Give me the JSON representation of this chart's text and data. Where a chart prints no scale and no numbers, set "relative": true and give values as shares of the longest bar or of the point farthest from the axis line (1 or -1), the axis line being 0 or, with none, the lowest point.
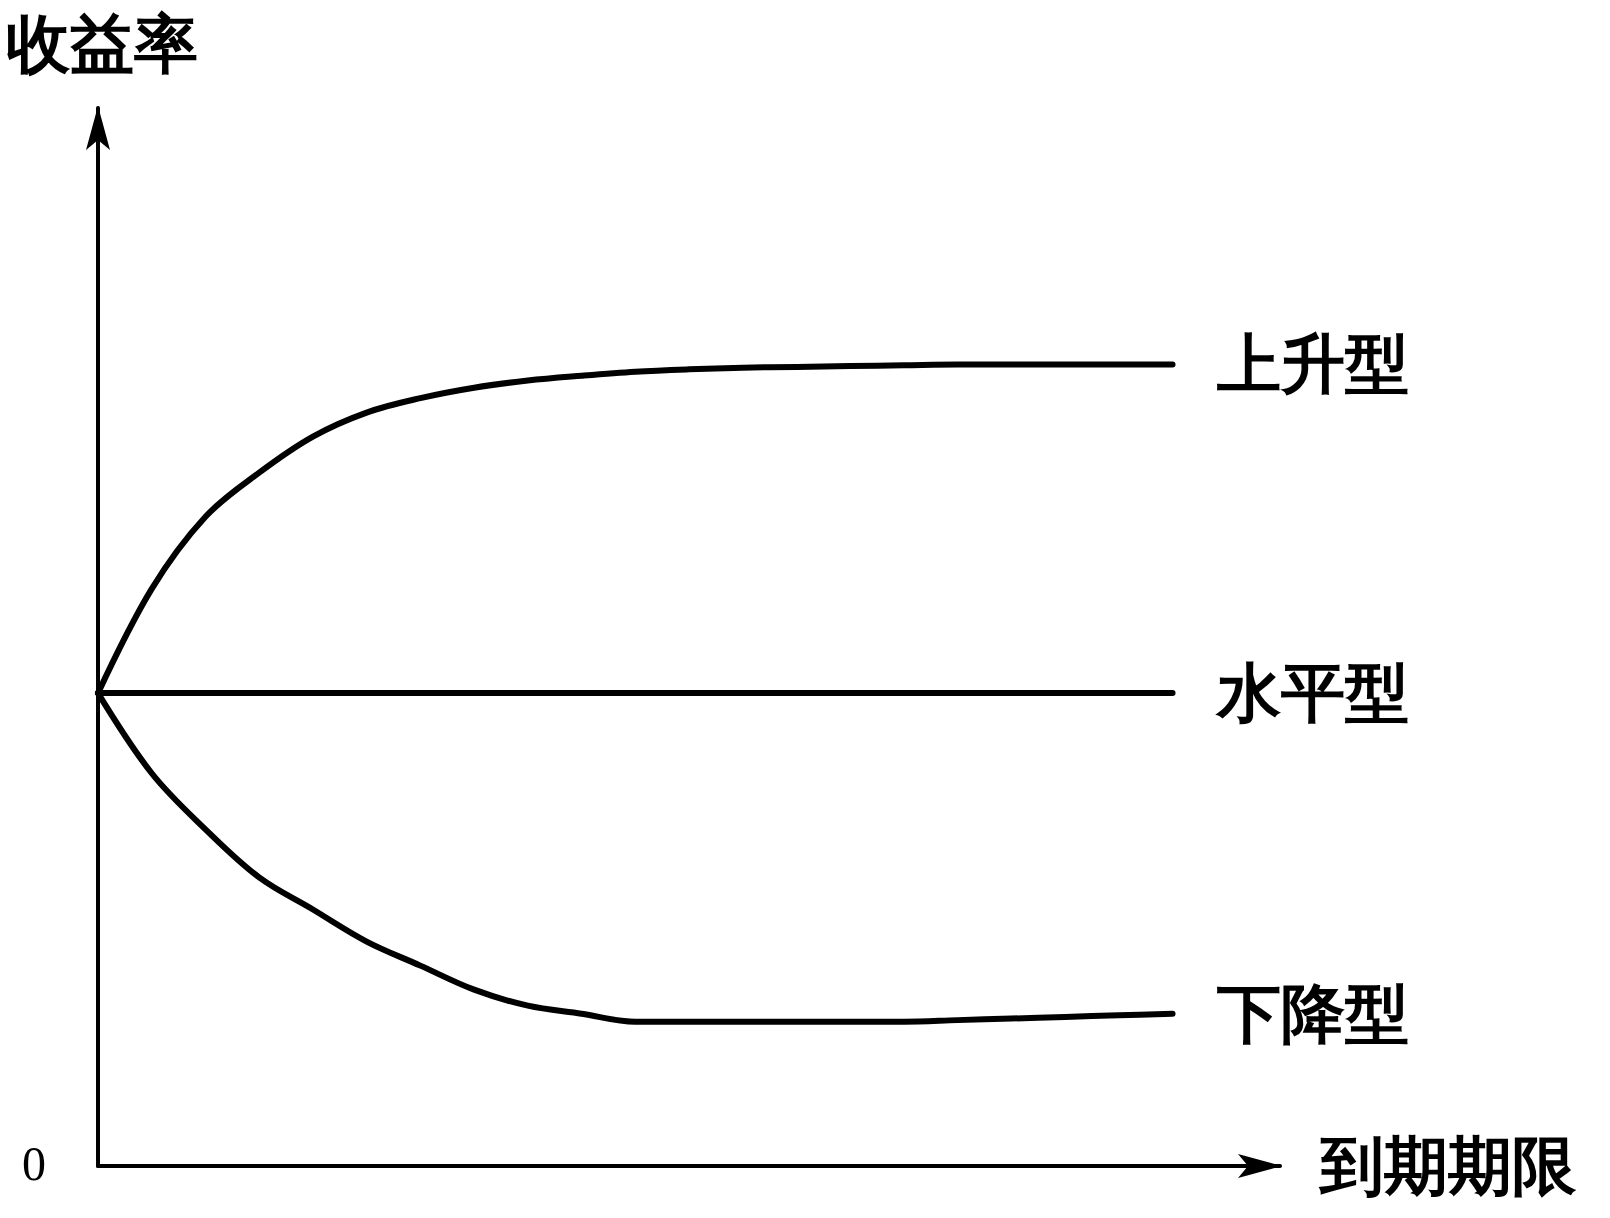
{
  "chart_data": {
    "type": "line",
    "relative": true,
    "xlabel": "到期期限",
    "ylabel": "收益率",
    "annotations": [
      "0"
    ],
    "categories": [
      null,
      null,
      null,
      null,
      null,
      null,
      null,
      null,
      null,
      null,
      null,
      null,
      null,
      null,
      null,
      null,
      null,
      null,
      null,
      null,
      null,
      null,
      null
    ],
    "series": [
      {
        "name": "上升型",
        "color": "#000000",
        "values": [
          0.59,
          0.72,
          0.81,
          0.865,
          0.91,
          0.94,
          0.958,
          0.971,
          0.98,
          0.986,
          0.991,
          0.994,
          0.996,
          0.997,
          0.998,
          0.999,
          1,
          1,
          1,
          1,
          1,
          null,
          null
        ]
      },
      {
        "name": "水平型",
        "color": "#000000",
        "values": [
          0.59,
          0.59,
          0.59,
          0.59,
          0.59,
          0.59,
          0.59,
          0.59,
          0.59,
          0.59,
          0.59,
          0.59,
          0.59,
          0.59,
          0.59,
          0.59,
          0.59,
          0.59,
          0.59,
          0.59,
          0.59,
          null,
          null
        ]
      },
      {
        "name": "下降型",
        "color": "#000000",
        "values": [
          0.59,
          0.49,
          0.42,
          0.36,
          0.32,
          0.28,
          0.25,
          0.22,
          0.2,
          0.19,
          0.18,
          0.18,
          0.18,
          0.18,
          0.18,
          0.18,
          0.182,
          0.184,
          0.186,
          0.188,
          0.19,
          null,
          null
        ]
      }
    ],
    "grid": false,
    "legend": false,
    "marker": "none",
    "line_style": "solid"
  }
}
